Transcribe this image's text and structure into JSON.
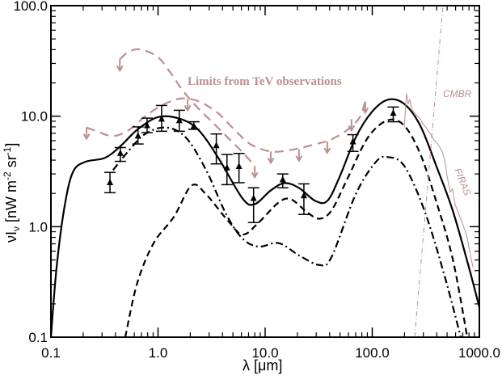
{
  "chart_data": {
    "type": "scatter",
    "title": "",
    "xlabel": "λ [μm]",
    "ylabel_parts": {
      "main": "νI",
      "sub": "ν",
      "unit_a": " [nW m",
      "exp_a": "-2",
      "unit_b": " sr",
      "exp_b": "-1",
      "close": "]"
    },
    "xscale": "log",
    "yscale": "log",
    "xlim": [
      0.1,
      1000
    ],
    "ylim": [
      0.1,
      100
    ],
    "xticks": [
      0.1,
      1,
      10,
      100,
      1000
    ],
    "xtick_labels": [
      "0.1",
      "1.0",
      "10.0",
      "100.0",
      "1000.0"
    ],
    "yticks": [
      0.1,
      1,
      10,
      100
    ],
    "ytick_labels": [
      "0.1",
      "1.0",
      "10.0",
      "100.0"
    ],
    "colors": {
      "axis": "#000000",
      "data": "#000000",
      "limits": "#bc8f8f",
      "cmbr": "#bc8f8f",
      "firas": "#bc8f8f"
    },
    "annotations": {
      "tev": "Limits from TeV observations",
      "cmbr": "CMBR",
      "firas": "FIRAS"
    },
    "measurements": [
      {
        "x": 0.356,
        "y": 2.5,
        "lo": 2.03,
        "hi": 3.1
      },
      {
        "x": 0.445,
        "y": 4.6,
        "lo": 3.9,
        "hi": 5.2
      },
      {
        "x": 0.65,
        "y": 6.6,
        "lo": 5.6,
        "hi": 8.0
      },
      {
        "x": 0.79,
        "y": 8.2,
        "lo": 7.1,
        "hi": 9.6
      },
      {
        "x": 1.08,
        "y": 9.4,
        "lo": 7.3,
        "hi": 12.5
      },
      {
        "x": 1.58,
        "y": 9.1,
        "lo": 7.3,
        "hi": 11.3
      },
      {
        "x": 2.16,
        "y": 8.1,
        "lo": 7.6,
        "hi": 8.9
      },
      {
        "x": 3.5,
        "y": 5.4,
        "lo": 3.7,
        "hi": 6.9
      },
      {
        "x": 4.4,
        "y": 3.4,
        "lo": 2.4,
        "hi": 4.5
      },
      {
        "x": 5.7,
        "y": 3.5,
        "lo": 2.5,
        "hi": 4.6
      },
      {
        "x": 7.8,
        "y": 1.8,
        "lo": 1.09,
        "hi": 2.25
      },
      {
        "x": 14.6,
        "y": 2.65,
        "lo": 2.25,
        "hi": 3.0
      },
      {
        "x": 23,
        "y": 1.9,
        "lo": 1.29,
        "hi": 2.44
      },
      {
        "x": 66,
        "y": 5.85,
        "lo": 4.8,
        "hi": 6.8
      },
      {
        "x": 157,
        "y": 10.6,
        "lo": 8.9,
        "hi": 12.1
      }
    ],
    "series": [
      {
        "name": "total-model",
        "style": "solid",
        "points": [
          [
            0.1,
            0.1
          ],
          [
            0.113,
            0.43
          ],
          [
            0.134,
            1.52
          ],
          [
            0.16,
            3.1
          ],
          [
            0.207,
            3.85
          ],
          [
            0.32,
            4.2
          ],
          [
            0.45,
            5.4
          ],
          [
            0.64,
            7.55
          ],
          [
            1.0,
            9.8
          ],
          [
            1.58,
            9.5
          ],
          [
            2.37,
            7.55
          ],
          [
            3.65,
            4.2
          ],
          [
            6.15,
            1.8
          ],
          [
            8.0,
            1.6
          ],
          [
            11.3,
            2.13
          ],
          [
            15.2,
            2.48
          ],
          [
            20.7,
            2.24
          ],
          [
            29.4,
            1.71
          ],
          [
            38,
            1.71
          ],
          [
            49,
            2.75
          ],
          [
            70,
            6.4
          ],
          [
            99,
            10.9
          ],
          [
            140,
            14.1
          ],
          [
            199,
            12.9
          ],
          [
            281,
            8.2
          ],
          [
            398,
            3.5
          ],
          [
            564,
            1.4
          ],
          [
            798,
            0.43
          ],
          [
            1000,
            0.186
          ]
        ]
      },
      {
        "name": "dust-model",
        "style": "dashed",
        "points": [
          [
            0.494,
            0.1
          ],
          [
            0.64,
            0.31
          ],
          [
            0.91,
            0.71
          ],
          [
            1.4,
            1.22
          ],
          [
            2.06,
            2.36
          ],
          [
            2.81,
            1.96
          ],
          [
            4.34,
            1.18
          ],
          [
            6.15,
            0.85
          ],
          [
            8.7,
            1.09
          ],
          [
            13.4,
            1.66
          ],
          [
            17.4,
            1.77
          ],
          [
            24.7,
            1.35
          ],
          [
            32,
            1.18
          ],
          [
            41.6,
            1.4
          ],
          [
            59,
            2.75
          ],
          [
            91,
            6.4
          ],
          [
            140,
            9.2
          ],
          [
            199,
            8.2
          ],
          [
            281,
            4.55
          ],
          [
            398,
            1.66
          ],
          [
            564,
            0.51
          ],
          [
            771,
            0.1
          ]
        ]
      },
      {
        "name": "stellar-model",
        "style": "dashdot",
        "points": [
          [
            0.38,
            3.25
          ],
          [
            0.54,
            4.95
          ],
          [
            0.76,
            6.9
          ],
          [
            1.18,
            7.9
          ],
          [
            1.82,
            6.4
          ],
          [
            2.81,
            3.25
          ],
          [
            4.34,
            1.29
          ],
          [
            6.15,
            0.78
          ],
          [
            8.7,
            0.66
          ],
          [
            13.4,
            0.71
          ],
          [
            20.7,
            0.55
          ],
          [
            32,
            0.45
          ],
          [
            41.6,
            0.53
          ],
          [
            70,
            1.96
          ],
          [
            108,
            3.85
          ],
          [
            140,
            4.26
          ],
          [
            199,
            3.54
          ],
          [
            307,
            1.4
          ],
          [
            473,
            0.36
          ],
          [
            670,
            0.1
          ]
        ]
      },
      {
        "name": "tev-limit-main",
        "style": "limit",
        "points": [
          [
            0.215,
            7.9
          ],
          [
            0.269,
            7.3
          ],
          [
            0.38,
            6.6
          ],
          [
            0.54,
            7.55
          ],
          [
            0.76,
            10.0
          ],
          [
            1.08,
            12.5
          ],
          [
            1.53,
            14.3
          ],
          [
            1.99,
            14.3
          ],
          [
            2.58,
            13.2
          ],
          [
            3.65,
            10.6
          ],
          [
            5.17,
            7.55
          ],
          [
            7.31,
            5.57
          ],
          [
            11.3,
            4.79
          ],
          [
            17.4,
            4.95
          ],
          [
            29.4,
            5.57
          ],
          [
            41.6,
            6.17
          ],
          [
            59,
            7.55
          ],
          [
            76,
            9.7
          ],
          [
            86,
            13.6
          ]
        ]
      },
      {
        "name": "tev-limit-upper",
        "style": "limit",
        "points": [
          [
            0.44,
            32.7
          ],
          [
            0.54,
            38.7
          ],
          [
            0.7,
            40
          ],
          [
            0.99,
            34.4
          ],
          [
            1.28,
            25.4
          ],
          [
            1.67,
            17.5
          ],
          [
            2.17,
            12.9
          ],
          [
            3.07,
            9.2
          ],
          [
            4.34,
            6.6
          ],
          [
            6.15,
            4.71
          ],
          [
            8.0,
            3.54
          ]
        ]
      },
      {
        "name": "firas",
        "style": "thin",
        "points": [
          [
            199,
            7.9
          ],
          [
            209,
            16.1
          ],
          [
            216,
            13.0
          ],
          [
            224,
            14.1
          ],
          [
            235,
            11.5
          ],
          [
            245,
            10.9
          ],
          [
            260,
            10.2
          ],
          [
            281,
            9.4
          ],
          [
            300,
            8.4
          ],
          [
            318,
            7.9
          ],
          [
            335,
            7.3
          ],
          [
            350,
            6.9
          ],
          [
            378,
            6.06
          ],
          [
            410,
            5.6
          ],
          [
            450,
            4.79
          ],
          [
            473,
            4.05
          ],
          [
            499,
            2.89
          ],
          [
            535,
            2.06
          ],
          [
            560,
            2.2
          ],
          [
            594,
            1.58
          ],
          [
            670,
            1.18
          ],
          [
            757,
            0.85
          ],
          [
            871,
            0.43
          ]
        ]
      },
      {
        "name": "cmbr",
        "style": "thin-dashdot",
        "points": [
          [
            249,
            0.1
          ],
          [
            457,
            100
          ]
        ]
      }
    ],
    "limit_arrows": [
      [
        0.215,
        7.9
      ],
      [
        1.89,
        14.3
      ],
      [
        11.3,
        4.79
      ],
      [
        20.7,
        5.0
      ],
      [
        38,
        5.9
      ],
      [
        64,
        9.4
      ],
      [
        86,
        13.6
      ],
      [
        0.44,
        32.7
      ],
      [
        8.0,
        3.54
      ]
    ],
    "grid": false
  }
}
